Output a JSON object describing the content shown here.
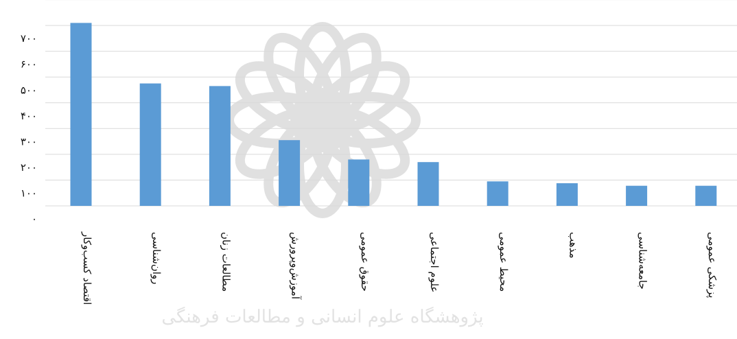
{
  "watermark": {
    "text": "پژوهشگاه علوم انسانی و مطالعات فرهنگی",
    "color": "#c8c8c8"
  },
  "chart_data": {
    "type": "bar",
    "title": "",
    "xlabel": "",
    "ylabel": "",
    "ylim": [
      0,
      800
    ],
    "ytick_values": [
      0,
      100,
      200,
      300,
      400,
      500,
      600,
      700
    ],
    "ytick_labels": [
      "۰",
      "۱۰۰",
      "۲۰۰",
      "۳۰۰",
      "۴۰۰",
      "۵۰۰",
      "۶۰۰",
      "۷۰۰"
    ],
    "grid": true,
    "legend": "none",
    "bar_color": "#5b9bd5",
    "categories": [
      "اقتصاد کسب‌وکار",
      "روان‌شناسی",
      "مطالعات زنان",
      "آموزش‌وپرورش",
      "حقوق عمومی",
      "علوم اجتماعی",
      "محیط عمومی",
      "مذهب",
      "جامعه‌شناسی",
      "پزشکی عمومی"
    ],
    "values": [
      710,
      475,
      465,
      255,
      180,
      170,
      95,
      88,
      78,
      78
    ]
  }
}
